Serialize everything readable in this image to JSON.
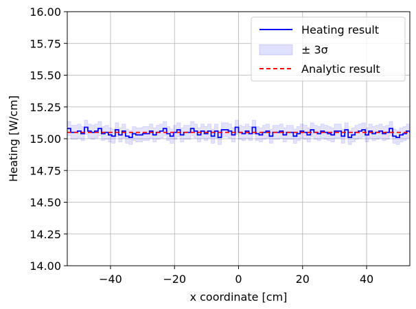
{
  "chart_data": {
    "type": "line",
    "xlabel": "x coordinate [cm]",
    "ylabel": "Heating [W/cm]",
    "xlim": [
      -53.5,
      53.5
    ],
    "ylim": [
      14.0,
      16.0
    ],
    "xticks": [
      -40,
      -20,
      0,
      20,
      40
    ],
    "xtick_labels": [
      "−40",
      "−20",
      "0",
      "20",
      "40"
    ],
    "yticks": [
      14.0,
      14.25,
      14.5,
      14.75,
      15.0,
      15.25,
      15.5,
      15.75,
      16.0
    ],
    "ytick_labels": [
      "14.00",
      "14.25",
      "14.50",
      "14.75",
      "15.00",
      "15.25",
      "15.50",
      "15.75",
      "16.00"
    ],
    "grid": true,
    "legend_position": "top-right",
    "series": [
      {
        "name": "Heating result",
        "style": "steps",
        "color": "#0000ff",
        "x_start": -53.5,
        "bin_width": 1.07,
        "values": [
          15.08,
          15.05,
          15.05,
          15.06,
          15.04,
          15.09,
          15.06,
          15.05,
          15.06,
          15.08,
          15.04,
          15.05,
          15.03,
          15.02,
          15.07,
          15.03,
          15.06,
          15.02,
          15.01,
          15.04,
          15.03,
          15.03,
          15.04,
          15.04,
          15.06,
          15.03,
          15.05,
          15.06,
          15.08,
          15.04,
          15.02,
          15.05,
          15.07,
          15.03,
          15.05,
          15.05,
          15.08,
          15.06,
          15.03,
          15.06,
          15.04,
          15.06,
          15.02,
          15.06,
          15.01,
          15.07,
          15.07,
          15.06,
          15.03,
          15.09,
          15.05,
          15.04,
          15.06,
          15.04,
          15.09,
          15.04,
          15.03,
          15.05,
          15.06,
          15.02,
          15.05,
          15.05,
          15.06,
          15.03,
          15.05,
          15.05,
          15.02,
          15.04,
          15.06,
          15.05,
          15.03,
          15.07,
          15.05,
          15.04,
          15.06,
          15.05,
          15.04,
          15.03,
          15.06,
          15.06,
          15.02,
          15.07,
          15.01,
          15.03,
          15.05,
          15.06,
          15.07,
          15.03,
          15.06,
          15.04,
          15.05,
          15.06,
          15.04,
          15.05,
          15.08,
          15.02,
          15.01,
          15.03,
          15.04,
          15.06,
          15.05,
          15.03,
          15.03,
          15.04,
          15.1,
          15.04
        ]
      },
      {
        "name": "± 3σ",
        "style": "band",
        "color": "#0000ff",
        "half_width": 0.055
      },
      {
        "name": "Analytic result",
        "style": "dashed",
        "color": "#ff0000",
        "y": 15.05
      }
    ]
  }
}
